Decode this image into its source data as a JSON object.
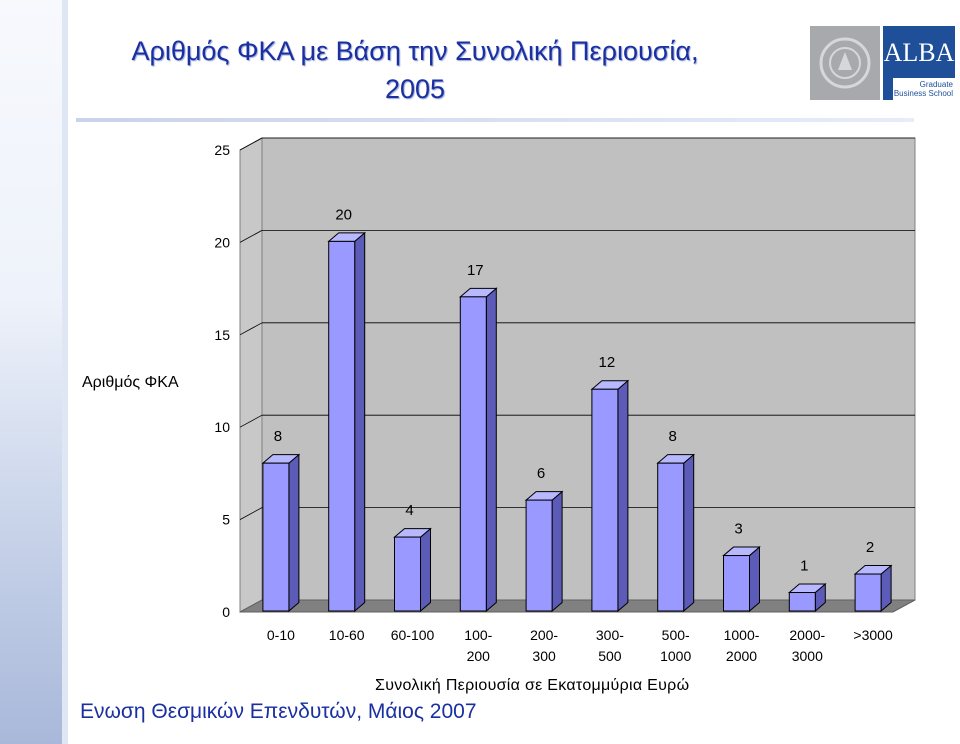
{
  "slide": {
    "title_line1": "Αριθμός ΦΚΑ με Βάση την Συνολική Περιουσία,",
    "title_line2": "2005",
    "footer": "Ενωση Θεσμικών Επενδυτών, Μάιος 2007",
    "logo_text": "ALBA",
    "logo_subtitle_line1": "Graduate",
    "logo_subtitle_line2": "Business School"
  },
  "chart_data": {
    "type": "bar",
    "title": "",
    "xlabel": "Συνολική Περιουσία σε Εκατομμύρια Ευρώ",
    "ylabel": "Αριθμός ΦΚΑ",
    "categories": [
      [
        "0-10"
      ],
      [
        "10-60"
      ],
      [
        "60-100"
      ],
      [
        "100-",
        "200"
      ],
      [
        "200-",
        "300"
      ],
      [
        "300-",
        "500"
      ],
      [
        "500-",
        "1000"
      ],
      [
        "1000-",
        "2000"
      ],
      [
        "2000-",
        "3000"
      ],
      [
        ">3000"
      ]
    ],
    "values": [
      8,
      20,
      4,
      17,
      6,
      12,
      8,
      3,
      1,
      2
    ],
    "ylim": [
      0,
      25
    ],
    "yticks": [
      0,
      5,
      10,
      15,
      20,
      25
    ],
    "grid": true,
    "legend": "none",
    "colors": {
      "bar_front": "#9999ff",
      "bar_side": "#5c5cb8",
      "bar_top": "#b8b8ff",
      "plot_wall": "#c0c0c0",
      "floor": "#808080",
      "grid": "#000000"
    }
  }
}
